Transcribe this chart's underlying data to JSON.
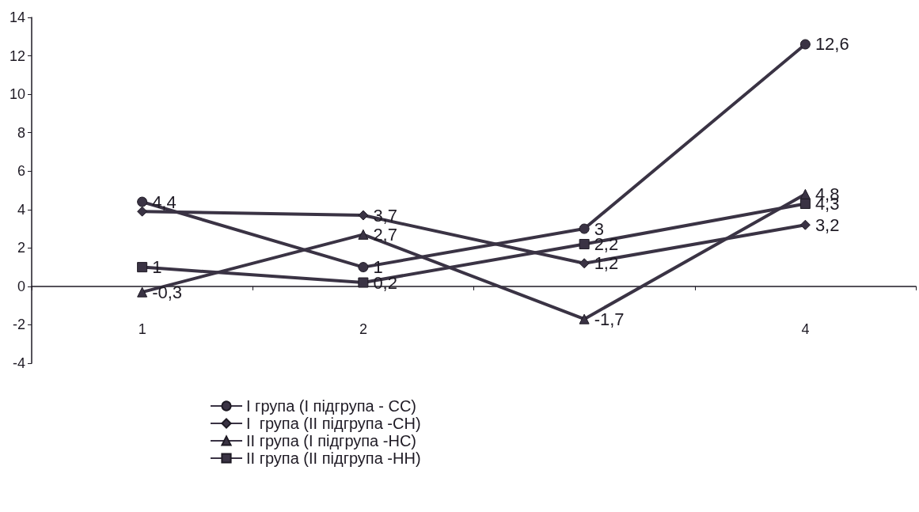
{
  "chart_data": {
    "type": "line",
    "categories": [
      "1",
      "2",
      null,
      "4"
    ],
    "series": [
      {
        "name": "I група (I підгрупа - СС)",
        "color": "#3a3344",
        "marker": "circle",
        "values": [
          4.4,
          1,
          3,
          12.6
        ],
        "value_labels": [
          "4,4",
          "1",
          "3",
          "12,6"
        ]
      },
      {
        "name": "I  група (II підгрупа -СН)",
        "color": "#3a3344",
        "marker": "diamond",
        "values": [
          3.9,
          3.7,
          1.2,
          3.2
        ],
        "value_labels": [
          null,
          "3,7",
          "1,2",
          "3,2"
        ]
      },
      {
        "name": "II група (I підгрупа -НС)",
        "color": "#3a3344",
        "marker": "triangle",
        "values": [
          -0.3,
          2.7,
          -1.7,
          4.8
        ],
        "value_labels": [
          "-0,3",
          "2,7",
          "-1,7",
          "4,8"
        ]
      },
      {
        "name": "II група (II підгрупа -НН)",
        "color": "#3a3344",
        "marker": "square",
        "values": [
          1,
          0.2,
          2.2,
          4.3
        ],
        "value_labels": [
          "1",
          "0,2",
          "2,2",
          "4,3"
        ]
      }
    ],
    "ylim": [
      -4,
      14
    ],
    "yticks": [
      -4,
      -2,
      0,
      2,
      4,
      6,
      8,
      10,
      12,
      14
    ],
    "grid": false,
    "legend": "bottom"
  }
}
